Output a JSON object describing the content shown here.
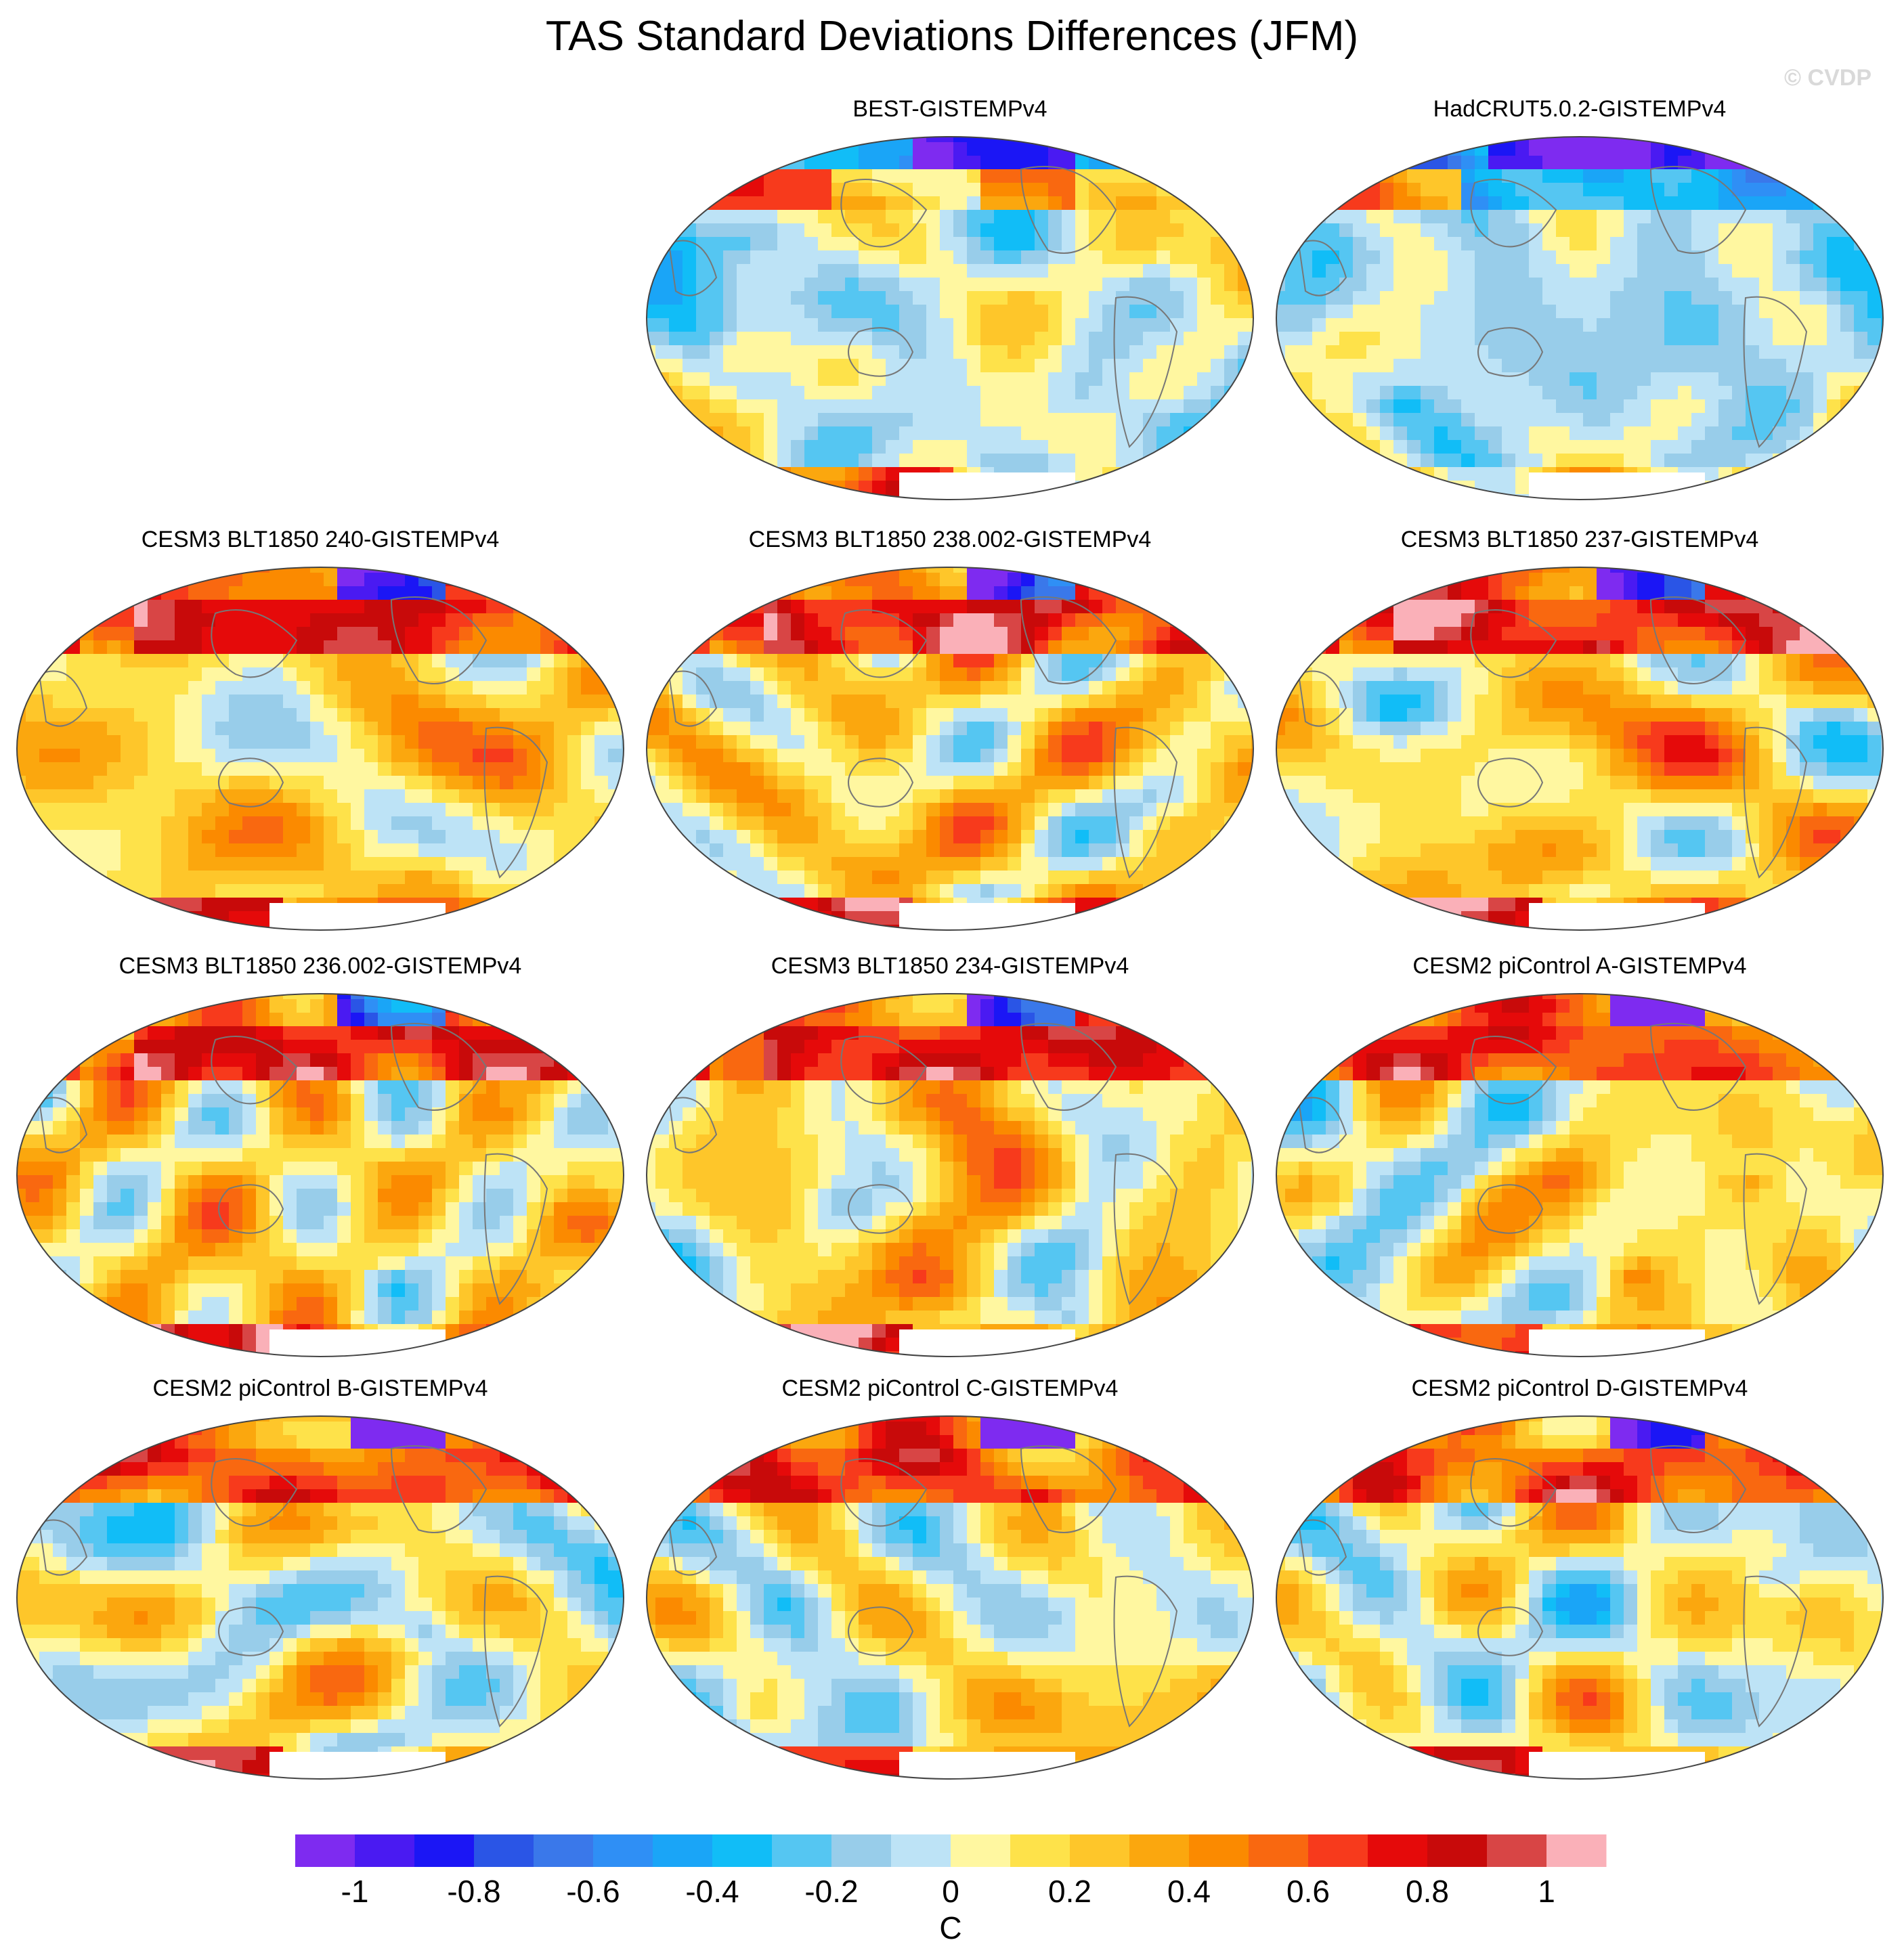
{
  "title": "TAS Standard Deviations Differences (JFM)",
  "watermark": "© CVDP",
  "chart_data": {
    "type": "heatmap",
    "projection": "Robinson-like global map",
    "title": "TAS Standard Deviations Differences (JFM)",
    "panels": [
      {
        "label": "BEST-GISTEMPv4",
        "pattern": "obs_best"
      },
      {
        "label": "HadCRUT5.0.2-GISTEMPv4",
        "pattern": "obs_hadcrut"
      },
      {
        "label": "CESM3 BLT1850 240-GISTEMPv4",
        "pattern": "model"
      },
      {
        "label": "CESM3 BLT1850 238.002-GISTEMPv4",
        "pattern": "model"
      },
      {
        "label": "CESM3 BLT1850 237-GISTEMPv4",
        "pattern": "model"
      },
      {
        "label": "CESM3 BLT1850 236.002-GISTEMPv4",
        "pattern": "model"
      },
      {
        "label": "CESM3 BLT1850 234-GISTEMPv4",
        "pattern": "model"
      },
      {
        "label": "CESM2 piControl A-GISTEMPv4",
        "pattern": "model2"
      },
      {
        "label": "CESM2 piControl B-GISTEMPv4",
        "pattern": "model2"
      },
      {
        "label": "CESM2 piControl C-GISTEMPv4",
        "pattern": "model2"
      },
      {
        "label": "CESM2 piControl D-GISTEMPv4",
        "pattern": "model2"
      }
    ],
    "colorbar": {
      "units": "C",
      "range": [
        -1.1,
        1.1
      ],
      "step": 0.1,
      "tick_values": [
        -1,
        -0.8,
        -0.6,
        -0.4,
        -0.2,
        0,
        0.2,
        0.4,
        0.6,
        0.8,
        1
      ],
      "tick_labels": [
        "-1",
        "-0.8",
        "-0.6",
        "-0.4",
        "-0.2",
        "0",
        "0.2",
        "0.4",
        "0.6",
        "0.8",
        "1"
      ],
      "colors": [
        "#7e2bf0",
        "#4a1af2",
        "#1b16f5",
        "#2a55e6",
        "#3a78ea",
        "#2f8ff5",
        "#1aa5f7",
        "#11bdf7",
        "#55c6f2",
        "#98cdea",
        "#bde3f6",
        "#fff7a0",
        "#fee24a",
        "#fec62a",
        "#fba70e",
        "#fb8a00",
        "#f96810",
        "#f73a1c",
        "#e50a0a",
        "#c80a0a",
        "#d84545",
        "#fab0b8"
      ]
    }
  }
}
